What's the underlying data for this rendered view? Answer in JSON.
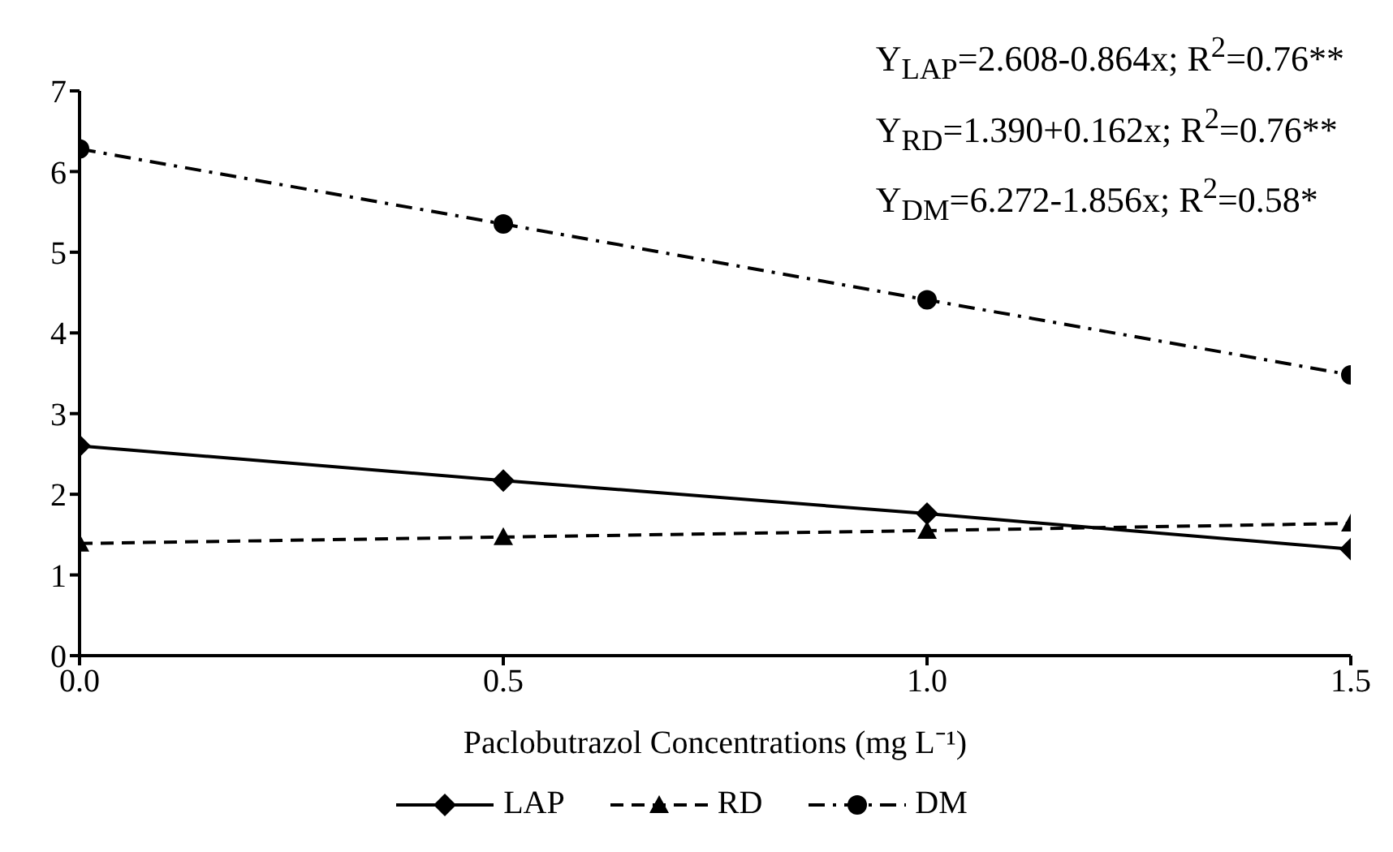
{
  "chart_data": {
    "type": "line",
    "xlabel": "Paclobutrazol Concentrations (mg L⁻¹)",
    "x": [
      0,
      0.5,
      1.0,
      1.5
    ],
    "series": [
      {
        "name": "LAP",
        "color": "#000000",
        "values": [
          2.6,
          2.17,
          1.76,
          1.32
        ],
        "marker": "diamond",
        "line_style": "solid"
      },
      {
        "name": "RD",
        "color": "#000000",
        "values": [
          1.39,
          1.47,
          1.55,
          1.64
        ],
        "marker": "triangle",
        "line_style": "dashed"
      },
      {
        "name": "DM",
        "color": "#000000",
        "values": [
          6.28,
          5.35,
          4.41,
          3.48
        ],
        "marker": "circle",
        "line_style": "dotted"
      }
    ],
    "xlim": [
      0,
      1.5
    ],
    "xticks": [
      {
        "value": 0,
        "label": "0.0"
      },
      {
        "value": 0.5,
        "label": "0.5"
      },
      {
        "value": 1,
        "label": "1.0"
      },
      {
        "value": 1.5,
        "label": "1.5"
      }
    ],
    "ylim": [
      0,
      7
    ],
    "yticks": [
      0,
      1,
      2,
      3,
      4,
      5,
      6,
      7
    ],
    "grid": false,
    "legend": "bottom",
    "annotations": [
      "Y$_{LAP}$=2.608-0.864x; R$^{2}$=0.76**",
      "Y$_{RD}$=1.390+0.162x; R$^{2}$=0.76**",
      "Y$_{DM}$=6.272-1.856x; R$^{2}$=0.58*"
    ]
  }
}
